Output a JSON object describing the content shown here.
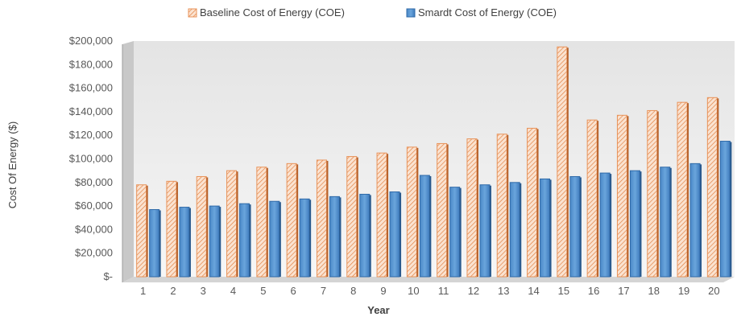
{
  "chart_data": {
    "type": "bar",
    "title": "",
    "xlabel": "Year",
    "ylabel": "Cost Of Energy ($)",
    "categories": [
      "1",
      "2",
      "3",
      "4",
      "5",
      "6",
      "7",
      "8",
      "9",
      "10",
      "11",
      "12",
      "13",
      "14",
      "15",
      "16",
      "17",
      "18",
      "19",
      "20"
    ],
    "series": [
      {
        "name": "Baseline Cost of Energy (COE)",
        "color": "#E8935A",
        "pattern": "diagonal-hatch",
        "values": [
          78000,
          81000,
          85000,
          90000,
          93000,
          96000,
          99000,
          102000,
          105000,
          110000,
          113000,
          117000,
          121000,
          126000,
          195000,
          133000,
          137000,
          141000,
          148000,
          152000
        ]
      },
      {
        "name": "Smardt Cost of Energy (COE)",
        "color": "#5B9BD5",
        "pattern": "solid",
        "values": [
          57000,
          59000,
          60000,
          62000,
          64000,
          66000,
          68000,
          70000,
          72000,
          86000,
          76000,
          78000,
          80000,
          83000,
          85000,
          88000,
          90000,
          93000,
          96000,
          115000
        ]
      }
    ],
    "ylim": [
      0,
      200000
    ],
    "yticks": [
      0,
      20000,
      40000,
      60000,
      80000,
      100000,
      120000,
      140000,
      160000,
      180000,
      200000
    ],
    "ytick_labels": [
      "$-",
      "$20,000",
      "$40,000",
      "$60,000",
      "$80,000",
      "$100,000",
      "$120,000",
      "$140,000",
      "$160,000",
      "$180,000",
      "$200,000"
    ],
    "grid": false,
    "legend_position": "top-center"
  }
}
